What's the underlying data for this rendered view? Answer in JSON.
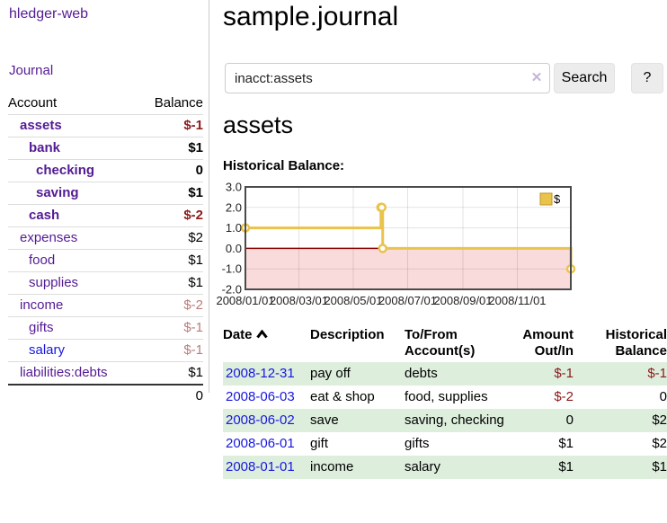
{
  "app": {
    "brand": "hledger-web",
    "nav_journal": "Journal"
  },
  "sidebar": {
    "col_account": "Account",
    "col_balance": "Balance",
    "accounts": [
      {
        "name": "assets",
        "balance": "$-1"
      },
      {
        "name": "bank",
        "balance": "$1"
      },
      {
        "name": "checking",
        "balance": "0"
      },
      {
        "name": "saving",
        "balance": "$1"
      },
      {
        "name": "cash",
        "balance": "$-2"
      },
      {
        "name": "expenses",
        "balance": "$2"
      },
      {
        "name": "food",
        "balance": "$1"
      },
      {
        "name": "supplies",
        "balance": "$1"
      },
      {
        "name": "income",
        "balance": "$-2"
      },
      {
        "name": "gifts",
        "balance": "$-1"
      },
      {
        "name": "salary",
        "balance": "$-1"
      },
      {
        "name": "liabilities:debts",
        "balance": "$1"
      }
    ],
    "total": "0"
  },
  "header": {
    "title": "sample.journal"
  },
  "search": {
    "value": "inacct:assets",
    "clear_icon": "✕",
    "button_label": "Search",
    "help_label": "?"
  },
  "main": {
    "account_title": "assets"
  },
  "chart_data": {
    "type": "line",
    "step": true,
    "title": "Historical Balance:",
    "series": [
      {
        "name": "$",
        "color": "#e9c34b",
        "points": [
          {
            "date": "2008-01-01",
            "day": 0,
            "value": 1
          },
          {
            "date": "2008-06-01",
            "day": 152,
            "value": 2
          },
          {
            "date": "2008-06-02",
            "day": 153,
            "value": 2
          },
          {
            "date": "2008-06-03",
            "day": 154,
            "value": 0
          },
          {
            "date": "2008-12-31",
            "day": 365,
            "value": -1
          }
        ]
      }
    ],
    "x_range_days": [
      0,
      365
    ],
    "ylim": [
      -2,
      3
    ],
    "y_ticks": [
      3.0,
      2.0,
      1.0,
      0.0,
      -1.0,
      -2.0
    ],
    "x_ticks": [
      {
        "label": "2008/01/01",
        "day": 0
      },
      {
        "label": "2008/03/01",
        "day": 60
      },
      {
        "label": "2008/05/01",
        "day": 121
      },
      {
        "label": "2008/07/01",
        "day": 182
      },
      {
        "label": "2008/09/01",
        "day": 244
      },
      {
        "label": "2008/11/01",
        "day": 305
      }
    ],
    "legend": {
      "label": "$",
      "position": "top-right"
    },
    "grid": true,
    "colors": {
      "negative_region": "#fadbdb",
      "zero_line": "#8b0000",
      "border": "#4a4a4a",
      "marker_fill": "#ffffff",
      "legend_fill": "#e9c34b",
      "legend_border": "#bf9426"
    }
  },
  "register": {
    "headers": {
      "date": "Date",
      "description": "Description",
      "account": "To/From Account(s)",
      "amount": "Amount Out/In",
      "balance": "Historical Balance"
    },
    "rows": [
      {
        "date": "2008-12-31",
        "description": "pay off",
        "account": "debts",
        "amount": "$-1",
        "balance": "$-1"
      },
      {
        "date": "2008-06-03",
        "description": "eat & shop",
        "account": "food, supplies",
        "amount": "$-2",
        "balance": "0"
      },
      {
        "date": "2008-06-02",
        "description": "save",
        "account": "saving, checking",
        "amount": "0",
        "balance": "$2"
      },
      {
        "date": "2008-06-01",
        "description": "gift",
        "account": "gifts",
        "amount": "$1",
        "balance": "$2"
      },
      {
        "date": "2008-01-01",
        "description": "income",
        "account": "salary",
        "amount": "$1",
        "balance": "$1"
      }
    ]
  },
  "colors": {
    "link_purple": "#541b94",
    "link_blue": "#1717e0",
    "negative_strong": "#8b1a1a",
    "negative_light": "#b97c7c",
    "row_green": "#ddeedd"
  }
}
